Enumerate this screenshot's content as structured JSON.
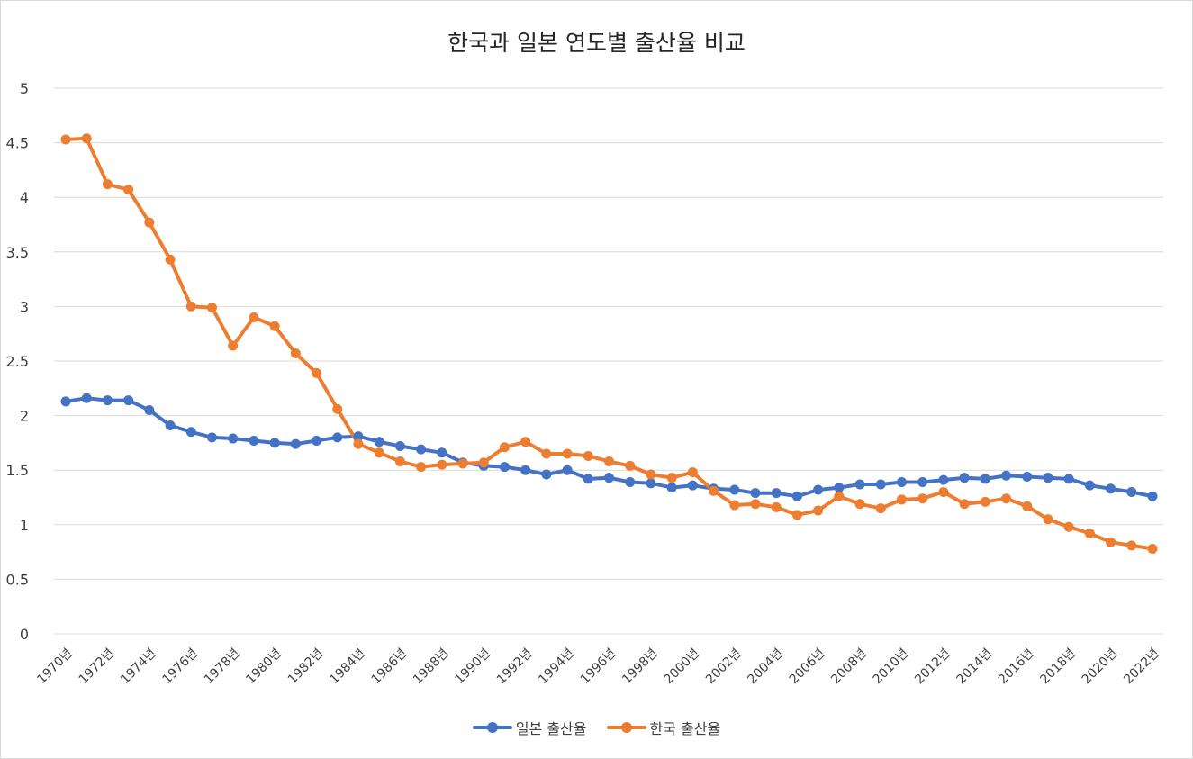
{
  "chart_data": {
    "type": "line",
    "title": "한국과 일본 연도별 출산율 비교",
    "xlabel": "",
    "ylabel": "",
    "ylim": [
      0,
      5
    ],
    "y_ticks": [
      "0",
      "0.5",
      "1",
      "1.5",
      "2",
      "2.5",
      "3",
      "3.5",
      "4",
      "4.5",
      "5"
    ],
    "grid": "horizontal",
    "legend": "bottom",
    "categories": [
      "1970년",
      "1971년",
      "1972년",
      "1973년",
      "1974년",
      "1975년",
      "1976년",
      "1977년",
      "1978년",
      "1979년",
      "1980년",
      "1981년",
      "1982년",
      "1983년",
      "1984년",
      "1985년",
      "1986년",
      "1987년",
      "1988년",
      "1989년",
      "1990년",
      "1991년",
      "1992년",
      "1993년",
      "1994년",
      "1995년",
      "1996년",
      "1997년",
      "1998년",
      "1999년",
      "2000년",
      "2001년",
      "2002년",
      "2003년",
      "2004년",
      "2005년",
      "2006년",
      "2007년",
      "2008년",
      "2009년",
      "2010년",
      "2011년",
      "2012년",
      "2013년",
      "2014년",
      "2015년",
      "2016년",
      "2017년",
      "2018년",
      "2019년",
      "2020년",
      "2021년",
      "2022년"
    ],
    "x_tick_labels": [
      "1970년",
      "1972년",
      "1974년",
      "1976년",
      "1978년",
      "1980년",
      "1982년",
      "1984년",
      "1986년",
      "1988년",
      "1990년",
      "1992년",
      "1994년",
      "1996년",
      "1998년",
      "2000년",
      "2002년",
      "2004년",
      "2006년",
      "2008년",
      "2010년",
      "2012년",
      "2014년",
      "2016년",
      "2018년",
      "2020년",
      "2022년"
    ],
    "series": [
      {
        "name": "일본 출산율",
        "color": "#4472c4",
        "values": [
          2.13,
          2.16,
          2.14,
          2.14,
          2.05,
          1.91,
          1.85,
          1.8,
          1.79,
          1.77,
          1.75,
          1.74,
          1.77,
          1.8,
          1.81,
          1.76,
          1.72,
          1.69,
          1.66,
          1.57,
          1.54,
          1.53,
          1.5,
          1.46,
          1.5,
          1.42,
          1.43,
          1.39,
          1.38,
          1.34,
          1.36,
          1.33,
          1.32,
          1.29,
          1.29,
          1.26,
          1.32,
          1.34,
          1.37,
          1.37,
          1.39,
          1.39,
          1.41,
          1.43,
          1.42,
          1.45,
          1.44,
          1.43,
          1.42,
          1.36,
          1.33,
          1.3,
          1.26
        ]
      },
      {
        "name": "한국 출산율",
        "color": "#ed7d31",
        "values": [
          4.53,
          4.54,
          4.12,
          4.07,
          3.77,
          3.43,
          3.0,
          2.99,
          2.64,
          2.9,
          2.82,
          2.57,
          2.39,
          2.06,
          1.74,
          1.66,
          1.58,
          1.53,
          1.55,
          1.56,
          1.57,
          1.71,
          1.76,
          1.65,
          1.65,
          1.63,
          1.58,
          1.54,
          1.46,
          1.43,
          1.48,
          1.31,
          1.18,
          1.19,
          1.16,
          1.09,
          1.13,
          1.26,
          1.19,
          1.15,
          1.23,
          1.24,
          1.3,
          1.19,
          1.21,
          1.24,
          1.17,
          1.05,
          0.98,
          0.92,
          0.84,
          0.81,
          0.78
        ]
      }
    ]
  }
}
